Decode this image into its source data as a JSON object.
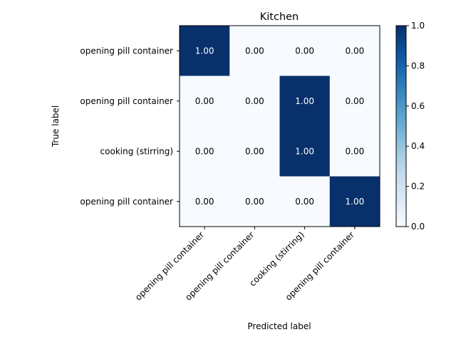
{
  "chart_data": {
    "type": "heatmap",
    "title": "Kitchen",
    "xlabel": "Predicted label",
    "ylabel": "True label",
    "x_categories": [
      "opening pill container",
      "opening pill container",
      "cooking (stirring)",
      "opening pill container"
    ],
    "y_categories": [
      "opening pill container",
      "opening pill container",
      "cooking (stirring)",
      "opening pill container"
    ],
    "values": [
      [
        1.0,
        0.0,
        0.0,
        0.0
      ],
      [
        0.0,
        0.0,
        1.0,
        0.0
      ],
      [
        0.0,
        0.0,
        1.0,
        0.0
      ],
      [
        0.0,
        0.0,
        0.0,
        1.0
      ]
    ],
    "cell_labels": [
      [
        "1.00",
        "0.00",
        "0.00",
        "0.00"
      ],
      [
        "0.00",
        "0.00",
        "1.00",
        "0.00"
      ],
      [
        "0.00",
        "0.00",
        "1.00",
        "0.00"
      ],
      [
        "0.00",
        "0.00",
        "0.00",
        "1.00"
      ]
    ],
    "colorbar": {
      "range": [
        0.0,
        1.0
      ],
      "ticks": [
        0.0,
        0.2,
        0.4,
        0.6,
        0.8,
        1.0
      ],
      "tick_labels": [
        "0.0",
        "0.2",
        "0.4",
        "0.6",
        "0.8",
        "1.0"
      ],
      "colormap": "Blues",
      "color_low": "#f7fbff",
      "color_high": "#08306b"
    },
    "grid": false,
    "legend": "colorbar-right"
  }
}
